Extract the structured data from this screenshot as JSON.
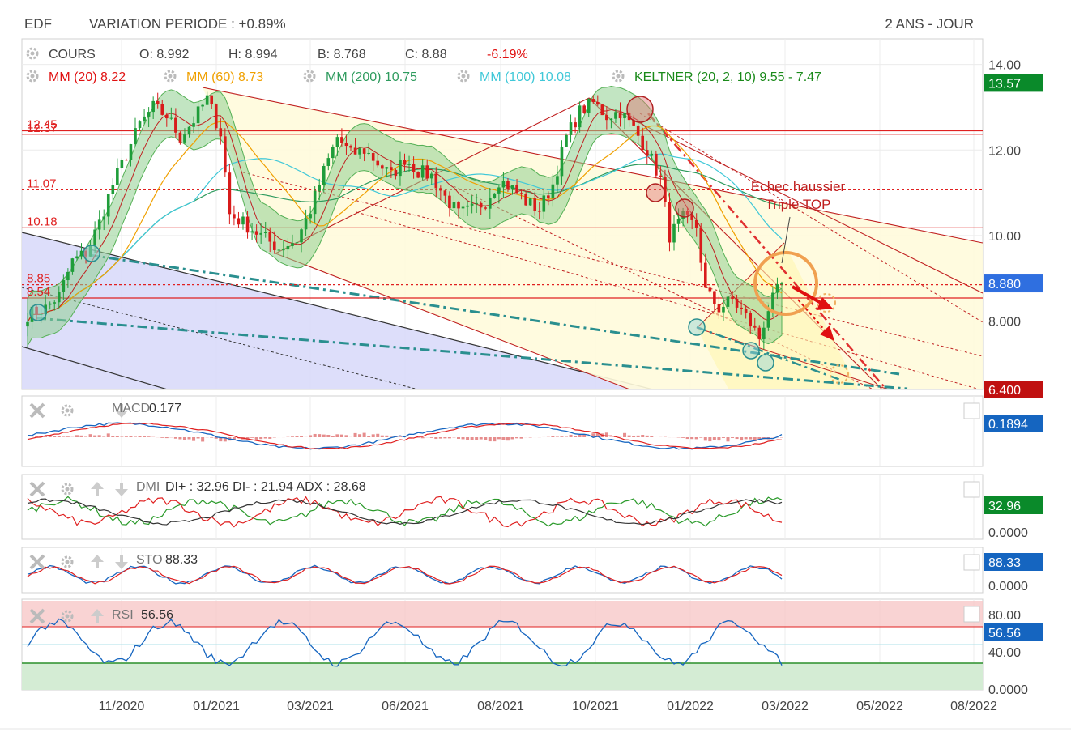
{
  "header": {
    "ticker": "EDF",
    "variation": "VARIATION PERIODE : +0.89%",
    "period": "2 ANS - JOUR"
  },
  "legend": {
    "cours": {
      "label": "COURS",
      "open": "O: 8.992",
      "high": "H: 8.994",
      "low": "B: 8.768",
      "close": "C: 8.88",
      "change": "-6.19%"
    },
    "indicators": [
      {
        "label": "MM (20)",
        "value": "8.22",
        "color": "#e01010"
      },
      {
        "label": "MM (60)",
        "value": "8.73",
        "color": "#f0a000"
      },
      {
        "label": "MM (200)",
        "value": "10.75",
        "color": "#2e9b5e"
      },
      {
        "label": "MM (100)",
        "value": "10.08",
        "color": "#40c8d8"
      },
      {
        "label": "KELTNER (20, 2, 10)",
        "value": "9.55 - 7.47",
        "color": "#1a8a1a"
      }
    ]
  },
  "annotation": {
    "line1": "Echec haussier",
    "line2": "Triple TOP"
  },
  "colors": {
    "up": "#1f9d3a",
    "down": "#d81b1b",
    "level": "#e02020",
    "channel": "#c02020",
    "teal": "#2a8f8f",
    "keltner": "#55b055"
  },
  "chart_data": [
    {
      "type": "candlestick",
      "name": "COURS",
      "x_ticks": [
        "11/2020",
        "01/2021",
        "03/2021",
        "06/2021",
        "08/2021",
        "10/2021",
        "01/2022",
        "03/2022",
        "05/2022",
        "08/2022"
      ],
      "y_ticks": [
        "14.00",
        "12.00",
        "10.00",
        "8.000"
      ],
      "ylim": [
        6.4,
        14.6
      ],
      "horizontal_levels": [
        {
          "label": "12.45",
          "value": 12.45
        },
        {
          "label": "12.37",
          "value": 12.37
        },
        {
          "label": "11.07",
          "value": 11.07
        },
        {
          "label": "10.18",
          "value": 10.18
        },
        {
          "label": "8.85",
          "value": 8.85
        },
        {
          "label": "8.54",
          "value": 8.54
        }
      ],
      "price_badges": [
        {
          "value": 13.57,
          "text": "13.57",
          "color": "#0a8a2a"
        },
        {
          "value": 8.88,
          "text": "8.880",
          "color": "#2f6fe0"
        },
        {
          "value": 6.4,
          "text": "6.400",
          "color": "#c01010"
        }
      ],
      "close_path": [
        [
          0,
          8.15
        ],
        [
          4,
          8.3
        ],
        [
          7,
          8.6
        ],
        [
          10,
          9.4
        ],
        [
          13,
          9.6
        ],
        [
          16,
          10.3
        ],
        [
          19,
          11.2
        ],
        [
          22,
          11.9
        ],
        [
          25,
          12.6
        ],
        [
          28,
          13.0
        ],
        [
          31,
          12.8
        ],
        [
          34,
          12.3
        ],
        [
          37,
          12.7
        ],
        [
          40,
          13.2
        ],
        [
          43,
          12.4
        ],
        [
          45,
          10.5
        ],
        [
          48,
          10.3
        ],
        [
          52,
          10.0
        ],
        [
          56,
          9.7
        ],
        [
          60,
          9.9
        ],
        [
          63,
          10.6
        ],
        [
          66,
          11.5
        ],
        [
          69,
          12.3
        ],
        [
          72,
          11.9
        ],
        [
          75,
          12.0
        ],
        [
          78,
          11.7
        ],
        [
          81,
          11.4
        ],
        [
          84,
          11.8
        ],
        [
          87,
          11.5
        ],
        [
          90,
          11.4
        ],
        [
          93,
          10.9
        ],
        [
          96,
          10.5
        ],
        [
          99,
          10.6
        ],
        [
          102,
          10.8
        ],
        [
          105,
          11.3
        ],
        [
          108,
          11.1
        ],
        [
          111,
          10.8
        ],
        [
          114,
          10.6
        ],
        [
          117,
          11.2
        ],
        [
          120,
          12.3
        ],
        [
          123,
          12.9
        ],
        [
          126,
          13.1
        ],
        [
          129,
          12.8
        ],
        [
          132,
          12.9
        ],
        [
          135,
          12.5
        ],
        [
          138,
          12.0
        ],
        [
          141,
          11.3
        ],
        [
          143,
          10.0
        ],
        [
          146,
          10.4
        ],
        [
          149,
          10.2
        ],
        [
          151,
          8.7
        ],
        [
          154,
          8.3
        ],
        [
          157,
          8.5
        ],
        [
          160,
          8.1
        ],
        [
          163,
          7.6
        ],
        [
          165,
          8.3
        ],
        [
          168,
          8.88
        ]
      ]
    },
    {
      "type": "line",
      "name": "MACD",
      "label": "MACD",
      "value_text": "0.177",
      "badge": "0.1894",
      "y_ticks": []
    },
    {
      "type": "line",
      "name": "DMI",
      "label": "DMI",
      "value_text": "DI+ : 32.96 DI- : 21.94 ADX : 28.68",
      "badge": "32.96",
      "y_ticks": [
        "0.0000"
      ]
    },
    {
      "type": "line",
      "name": "STO",
      "label": "STO",
      "value_text": "88.33",
      "badge": "88.33",
      "y_ticks": [
        "0.0000"
      ]
    },
    {
      "type": "line",
      "name": "RSI",
      "label": "RSI",
      "value_text": "56.56",
      "badge": "56.56",
      "y_ticks": [
        "80.00",
        "40.00",
        "0.0000"
      ]
    }
  ]
}
